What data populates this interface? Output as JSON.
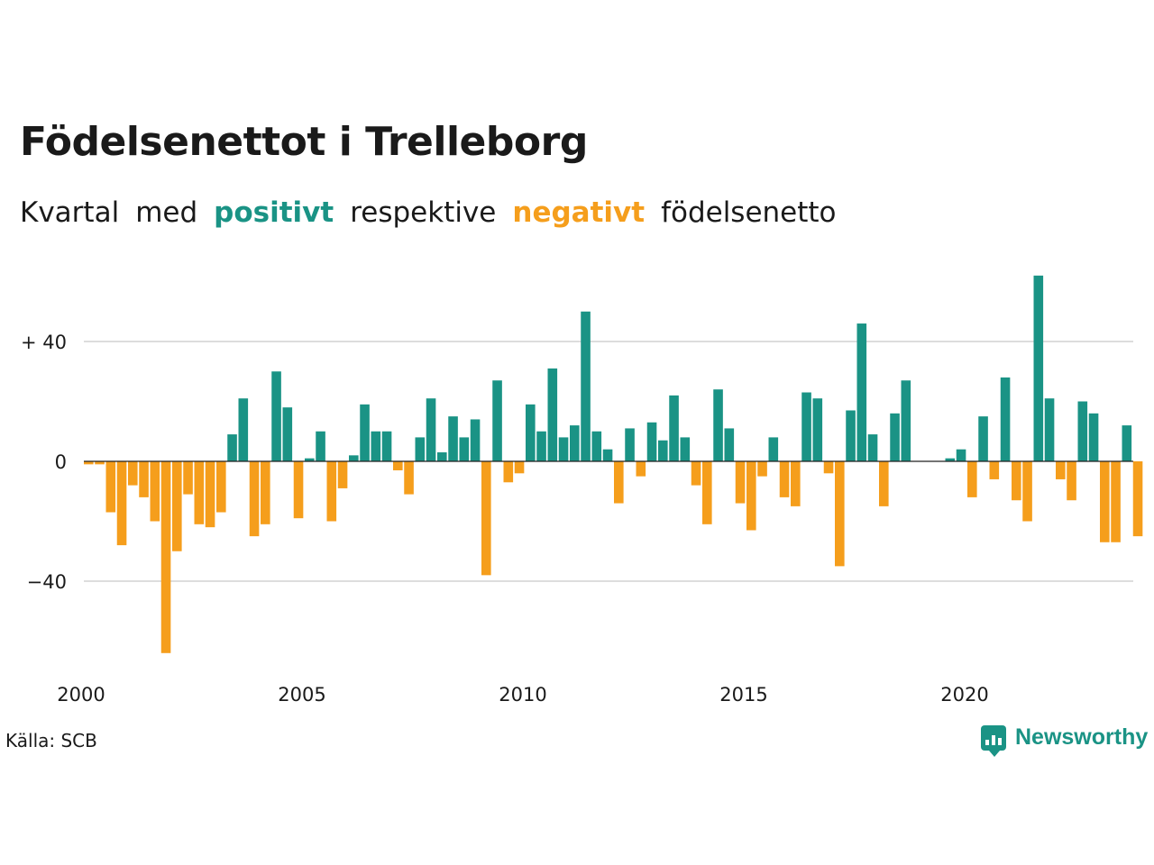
{
  "header": {
    "title": "Födelsenettot i Trelleborg",
    "subtitle_parts": [
      "Kvartal",
      "med",
      "positivt",
      "respektive",
      "negativt",
      "födelsenetto"
    ]
  },
  "footer": {
    "source": "Källa: SCB",
    "logo_text": "Newsworthy"
  },
  "colors": {
    "positive": "#1a9385",
    "negative": "#f59e1c",
    "grid": "#dddddd",
    "axis": "#222222"
  },
  "chart_data": {
    "type": "bar",
    "title": "Födelsenettot i Trelleborg",
    "subtitle": "Kvartal med positivt respektive negativt födelsenetto",
    "x_start": 2000,
    "x_step": 0.25,
    "x_ticks": [
      2000,
      2005,
      2010,
      2015,
      2020
    ],
    "y_ticks": [
      40,
      0,
      -40
    ],
    "y_tick_labels": [
      "+ 40",
      "0",
      "−40"
    ],
    "ylim": [
      -68,
      64
    ],
    "grid": "horizontal",
    "values": [
      -1,
      -1,
      -17,
      -28,
      -8,
      -12,
      -20,
      -64,
      -30,
      -11,
      -21,
      -22,
      -17,
      9,
      21,
      -25,
      -21,
      30,
      18,
      -19,
      1,
      10,
      -20,
      -9,
      2,
      19,
      10,
      10,
      -3,
      -11,
      8,
      21,
      3,
      15,
      8,
      14,
      -38,
      27,
      -7,
      -4,
      19,
      10,
      31,
      8,
      12,
      50,
      10,
      4,
      -14,
      11,
      -5,
      13,
      7,
      22,
      8,
      -8,
      -21,
      24,
      11,
      -14,
      -23,
      -5,
      8,
      -12,
      -15,
      23,
      21,
      -4,
      -35,
      17,
      46,
      9,
      -15,
      16,
      27,
      0,
      0,
      0,
      1,
      4,
      -12,
      15,
      -6,
      28,
      -13,
      -20,
      62,
      21,
      -6,
      -13,
      20,
      16,
      -27,
      -27,
      12,
      -25
    ]
  }
}
